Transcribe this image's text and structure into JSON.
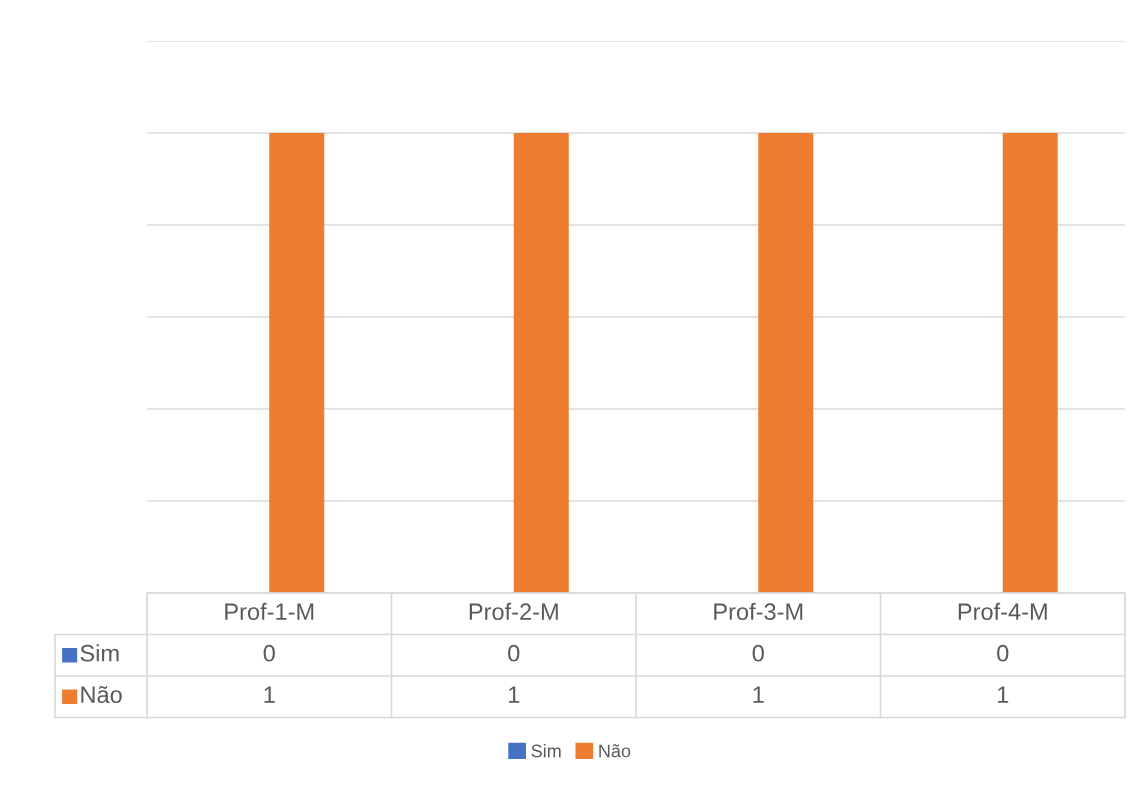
{
  "chart_data": {
    "type": "bar",
    "categories": [
      "Prof-1-M",
      "Prof-2-M",
      "Prof-3-M",
      "Prof-4-M"
    ],
    "series": [
      {
        "name": "Sim",
        "color": "#4472c4",
        "values": [
          0,
          0,
          0,
          0
        ]
      },
      {
        "name": "Não",
        "color": "#ed7d31",
        "values": [
          1,
          1,
          1,
          1
        ]
      }
    ],
    "ylim": [
      0,
      1.2
    ],
    "yticks": [
      {
        "value": 0,
        "label": null
      },
      {
        "value": 0.2,
        "label": null
      },
      {
        "value": 0.4,
        "label": null
      },
      {
        "value": 0.6,
        "label": null
      },
      {
        "value": 0.8,
        "label": null
      },
      {
        "value": 1,
        "label": null
      },
      {
        "value": 1.2,
        "label": null
      }
    ],
    "grid": "y",
    "legend": "bottom",
    "data_labels": true
  }
}
